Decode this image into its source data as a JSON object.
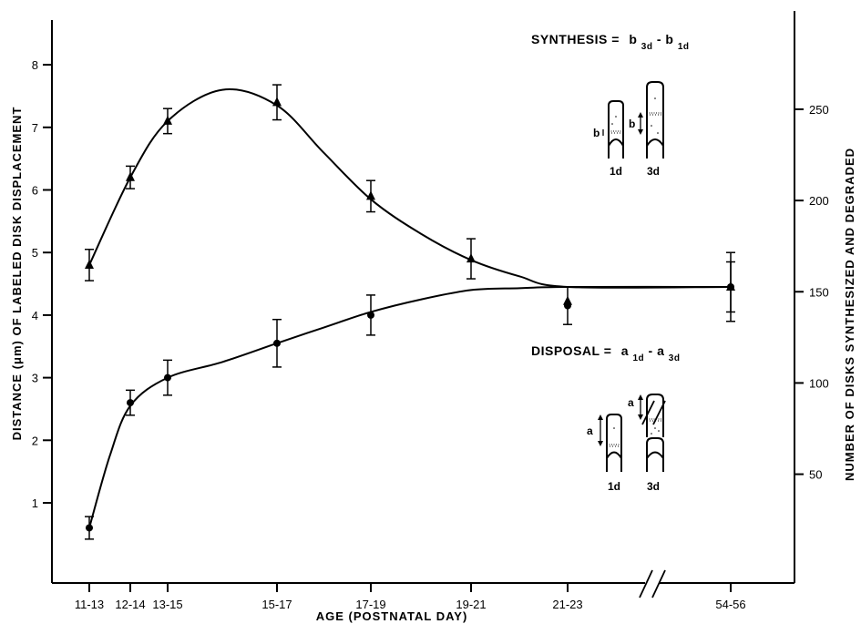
{
  "chart_data": {
    "type": "line",
    "xlabel": "AGE (POSTNATAL DAY)",
    "ylabel_left": "DISTANCE (μm) OF LABELED DISK DISPLACEMENT",
    "ylabel_right": "NUMBER OF DISKS SYNTHESIZED AND DEGRADED",
    "categories": [
      "11-13",
      "12-14",
      "13-15",
      "15-17",
      "17-19",
      "19-21",
      "21-23",
      "54-56"
    ],
    "ylim_left": [
      0,
      8.5
    ],
    "yticks_left": [
      "1",
      "2",
      "3",
      "4",
      "5",
      "6",
      "7",
      "8"
    ],
    "yticks_right": [
      "50",
      "100",
      "150",
      "200",
      "250"
    ],
    "right_axis_values": [
      50,
      100,
      150,
      200,
      250
    ],
    "right_axis_per_um": 34.3,
    "series": [
      {
        "name": "SYNTHESIS",
        "marker": "triangle",
        "x": [
          0,
          1,
          2,
          4,
          6,
          8,
          12
        ],
        "y": [
          4.8,
          6.2,
          7.1,
          7.4,
          5.9,
          4.9,
          4.45
        ],
        "err": [
          0.25,
          0.18,
          0.2,
          0.28,
          0.25,
          0.32,
          0.4
        ],
        "curve_x": [
          0,
          1,
          2,
          3,
          4,
          5,
          6,
          7,
          8,
          9,
          10,
          12
        ],
        "curve_y": [
          4.8,
          6.2,
          7.1,
          7.6,
          7.35,
          6.6,
          5.85,
          5.3,
          4.88,
          4.62,
          4.45,
          4.45
        ]
      },
      {
        "name": "DISPOSAL",
        "marker": "circle",
        "x": [
          0,
          1,
          2,
          4,
          6,
          10,
          12
        ],
        "y": [
          0.6,
          2.6,
          3.0,
          3.55,
          4.0,
          4.15,
          4.45
        ],
        "err": [
          0.18,
          0.2,
          0.28,
          0.38,
          0.32,
          0.3,
          0.55
        ],
        "curve_x": [
          0,
          0.5,
          1,
          2,
          3,
          4,
          5,
          6,
          7,
          8,
          9,
          10,
          12
        ],
        "curve_y": [
          0.6,
          1.75,
          2.55,
          3.0,
          3.25,
          3.55,
          3.8,
          4.05,
          4.25,
          4.4,
          4.43,
          4.45,
          4.45
        ]
      },
      {
        "name": "DISPOSAL-21-23-second-point",
        "marker": "triangle",
        "x": [
          10
        ],
        "y": [
          4.22
        ],
        "err": [
          0
        ]
      }
    ],
    "annotations": {
      "synthesis_label": "SYNTHESIS =",
      "synthesis_term1": "b",
      "synthesis_sub1": "3d",
      "synthesis_minus": "-",
      "synthesis_term2": "b",
      "synthesis_sub2": "1d",
      "disposal_label": "DISPOSAL =",
      "disposal_term1": "a",
      "disposal_sub1": "1d",
      "disposal_minus": "-",
      "disposal_term2": "a",
      "disposal_sub2": "3d",
      "cell_b_small": "b",
      "cell_b_large": "b",
      "cell_a_small": "a",
      "cell_a_large": "a",
      "cell_1d_top": "1d",
      "cell_3d_top": "3d",
      "cell_1d_bottom": "1d",
      "cell_3d_bottom": "3d"
    }
  }
}
